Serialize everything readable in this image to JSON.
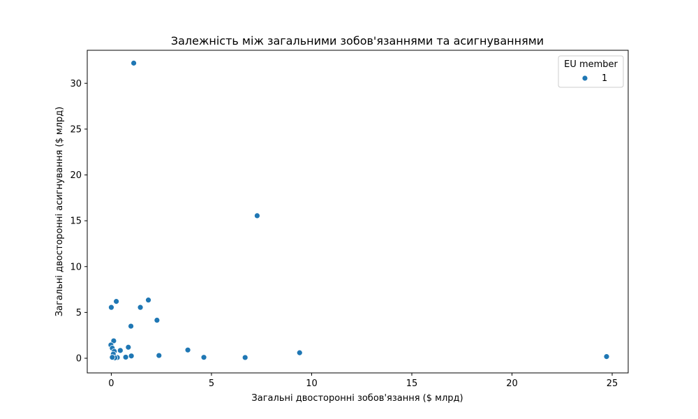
{
  "chart_data": {
    "type": "scatter",
    "title": "Залежність між загальними зобов'язаннями та асигнуваннями",
    "xlabel": "Загальні двосторонні зобов'язання ($ млрд)",
    "ylabel": "Загальні двосторонні асигнування ($ млрд)",
    "xlim": [
      -1.2,
      25.8
    ],
    "ylim": [
      -1.6,
      33.6
    ],
    "xticks": [
      0,
      5,
      10,
      15,
      20,
      25
    ],
    "yticks": [
      0,
      5,
      10,
      15,
      20,
      25,
      30
    ],
    "grid": false,
    "legend": {
      "title": "EU member",
      "placement": "top-right",
      "entries": [
        "1"
      ]
    },
    "series": [
      {
        "name": "1",
        "color": "#1f77b4",
        "points": [
          {
            "x": 1.12,
            "y": 32.2
          },
          {
            "x": 7.28,
            "y": 15.55
          },
          {
            "x": 0.0,
            "y": 5.55
          },
          {
            "x": 0.25,
            "y": 6.2
          },
          {
            "x": 1.45,
            "y": 5.55
          },
          {
            "x": 1.85,
            "y": 6.35
          },
          {
            "x": 2.28,
            "y": 4.15
          },
          {
            "x": 0.98,
            "y": 3.5
          },
          {
            "x": 0.12,
            "y": 1.9
          },
          {
            "x": -0.02,
            "y": 1.45
          },
          {
            "x": 0.05,
            "y": 1.1
          },
          {
            "x": 0.85,
            "y": 1.2
          },
          {
            "x": 0.45,
            "y": 0.85
          },
          {
            "x": 0.15,
            "y": 0.75
          },
          {
            "x": 0.1,
            "y": 0.45
          },
          {
            "x": 3.82,
            "y": 0.9
          },
          {
            "x": 9.4,
            "y": 0.6
          },
          {
            "x": 2.38,
            "y": 0.3
          },
          {
            "x": 1.0,
            "y": 0.25
          },
          {
            "x": 0.72,
            "y": 0.12
          },
          {
            "x": 0.3,
            "y": 0.08
          },
          {
            "x": 0.18,
            "y": 0.05
          },
          {
            "x": 0.05,
            "y": 0.1
          },
          {
            "x": 4.62,
            "y": 0.1
          },
          {
            "x": 6.68,
            "y": 0.08
          },
          {
            "x": 24.72,
            "y": 0.18
          }
        ]
      }
    ]
  }
}
